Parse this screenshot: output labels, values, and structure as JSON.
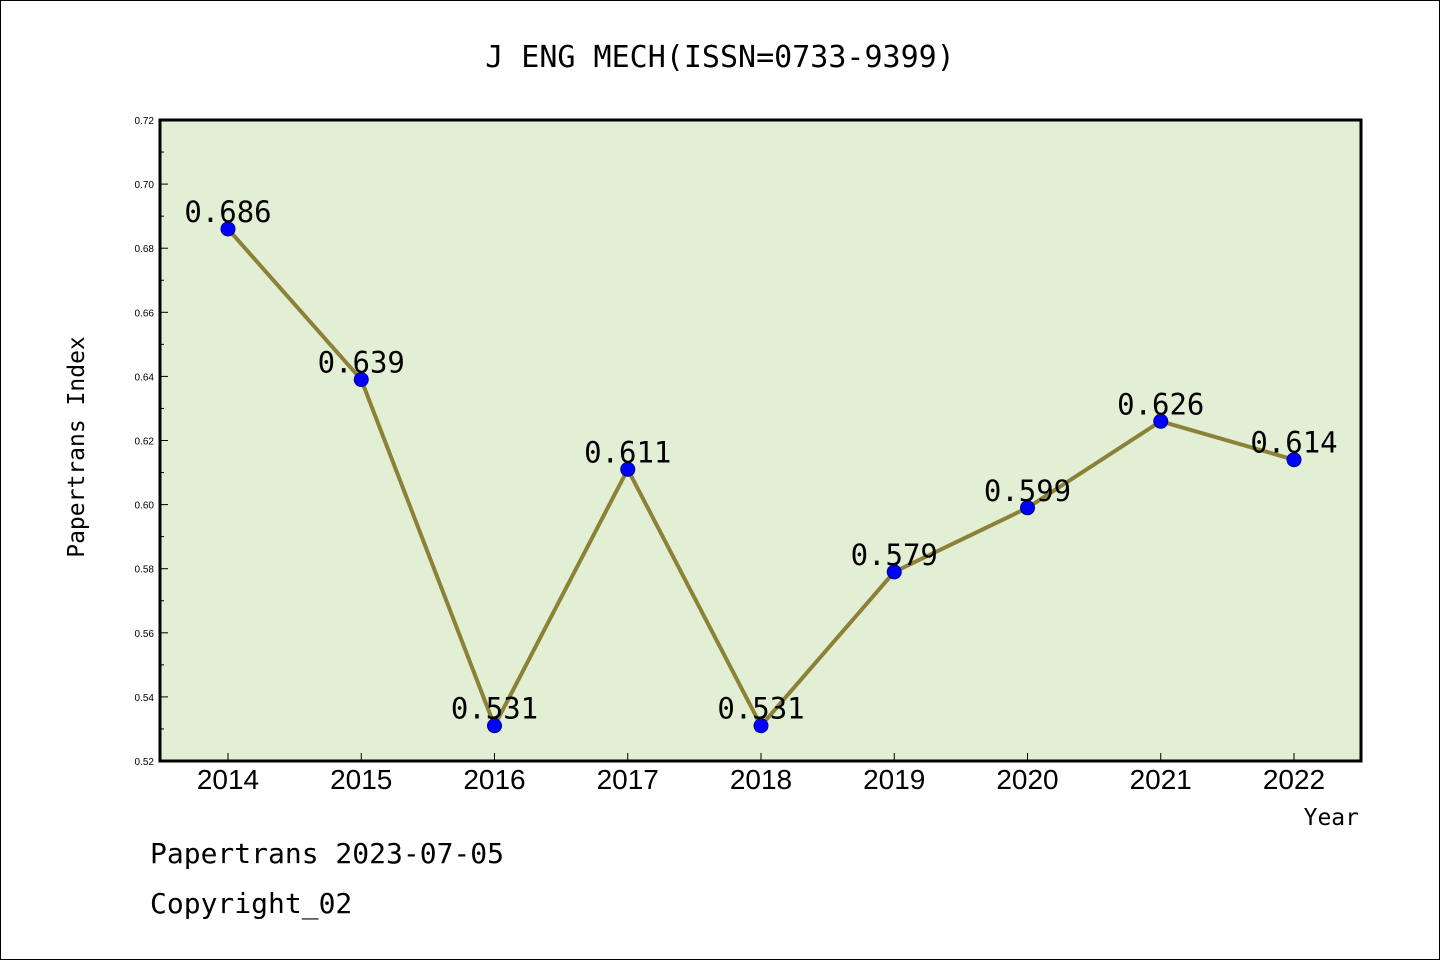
{
  "chart_data": {
    "type": "line",
    "title": "J ENG MECH(ISSN=0733-9399)",
    "xlabel": "Year",
    "ylabel": "Papertrans Index",
    "categories": [
      "2014",
      "2015",
      "2016",
      "2017",
      "2018",
      "2019",
      "2020",
      "2021",
      "2022"
    ],
    "series": [
      {
        "values": [
          0.686,
          0.639,
          0.531,
          0.611,
          0.531,
          0.579,
          0.599,
          0.626,
          0.614
        ]
      }
    ],
    "data_labels": [
      "0.686",
      "0.639",
      "0.531",
      "0.611",
      "0.531",
      "0.579",
      "0.599",
      "0.626",
      "0.614"
    ],
    "ylim": [
      0.52,
      0.72
    ],
    "yticks": [
      "0.52",
      "0.54",
      "0.56",
      "0.58",
      "0.60",
      "0.62",
      "0.64",
      "0.66",
      "0.68",
      "0.70",
      "0.72"
    ],
    "grid": false,
    "colors": {
      "plot_background": "#e2efd4",
      "line": "#8b8237",
      "marker": "#0000ff"
    }
  },
  "footer": {
    "line1": "Papertrans 2023-07-05",
    "line2": "Copyright_02"
  }
}
